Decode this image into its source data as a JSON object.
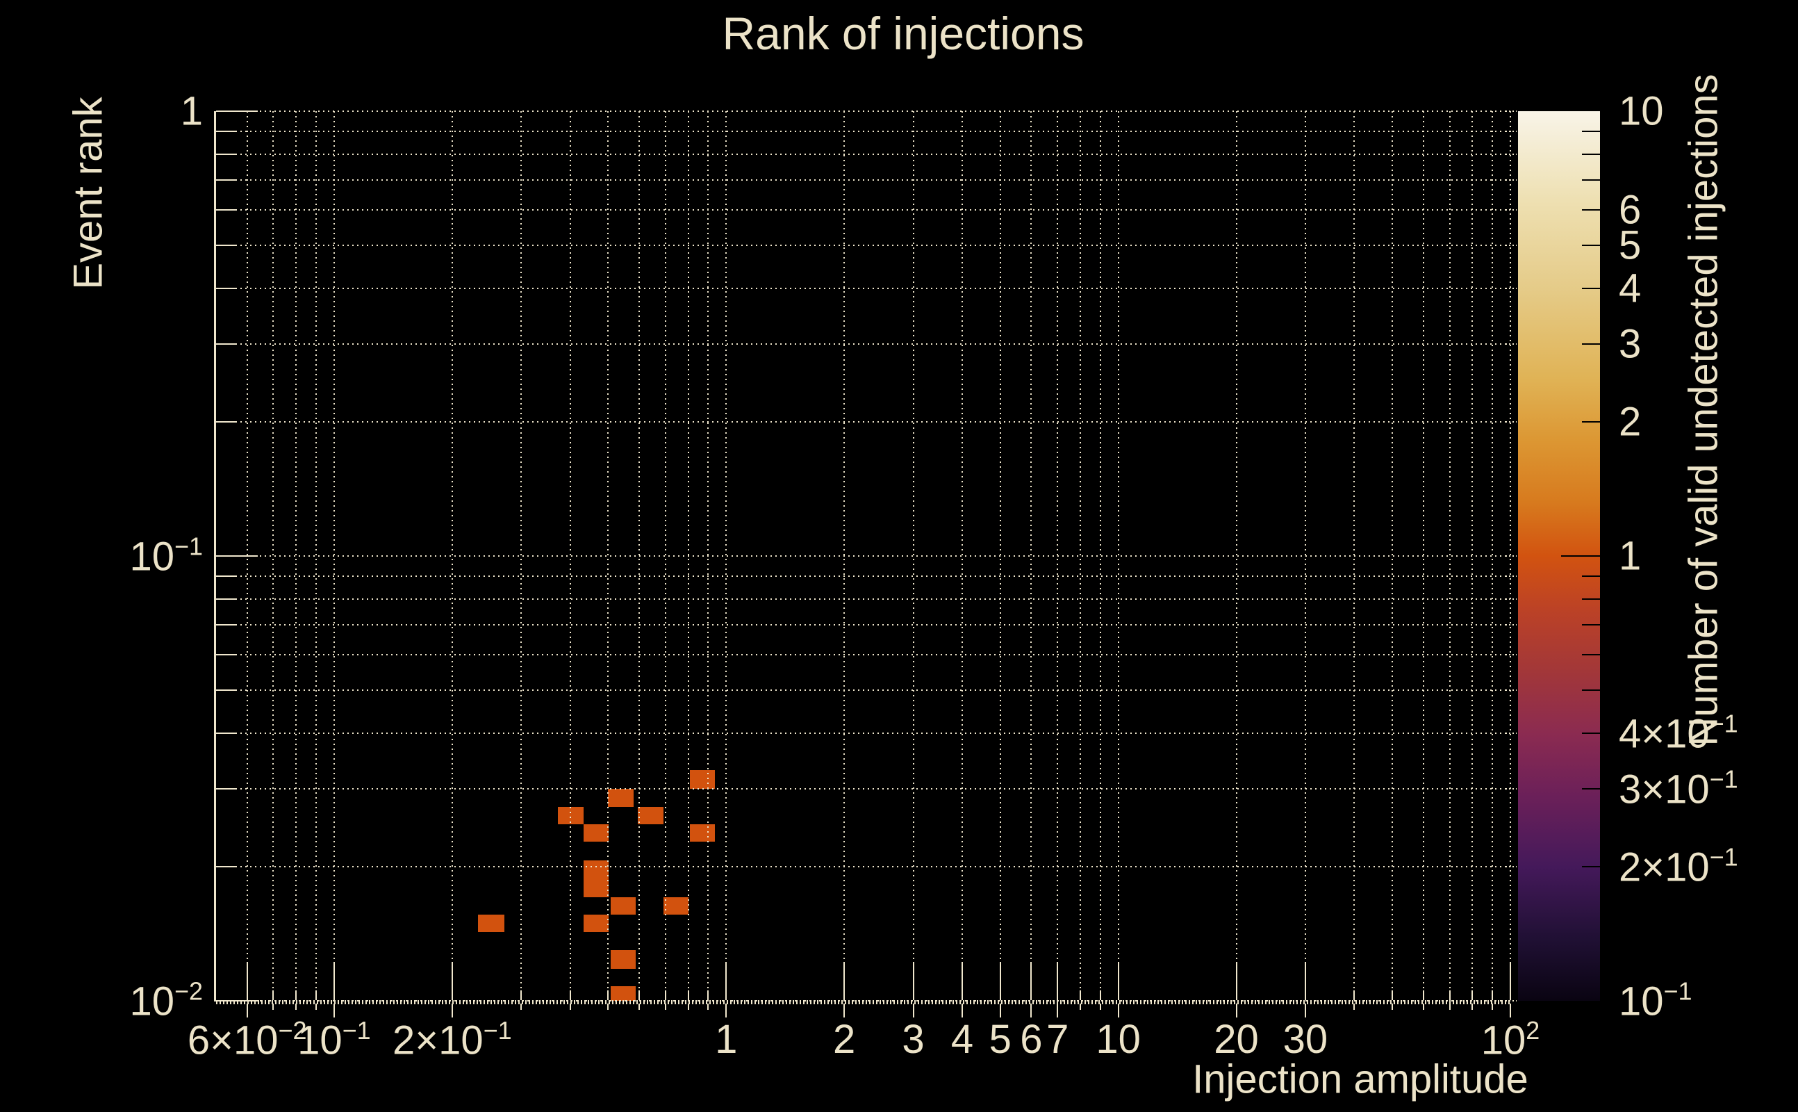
{
  "colors": {
    "background": "#000000",
    "text": "#ece3c8",
    "grid": "#f0e7cd",
    "cell": "#d2520e",
    "colorbar_tick": "#000000"
  },
  "chart_data": {
    "type": "heatmap",
    "title": "Rank of injections",
    "xlabel": "Injection amplitude",
    "ylabel": "Event rank",
    "colorbar_label": "Number of valid undetected injections",
    "x_scale": "log",
    "y_scale": "log",
    "color_scale": "log",
    "grid": true,
    "xlim": [
      0.05,
      100
    ],
    "ylim": [
      0.01,
      1
    ],
    "clim": [
      0.1,
      10
    ],
    "x_gridlines": [
      0.06,
      0.07,
      0.08,
      0.09,
      0.1,
      0.2,
      0.3,
      0.4,
      0.5,
      0.6,
      0.7,
      0.8,
      0.9,
      1,
      2,
      3,
      4,
      5,
      6,
      7,
      8,
      9,
      10,
      20,
      30,
      40,
      50,
      60,
      70,
      80,
      90,
      100
    ],
    "y_gridlines": [
      1,
      0.9,
      0.8,
      0.7,
      0.6,
      0.5,
      0.4,
      0.3,
      0.2,
      0.1,
      0.09,
      0.08,
      0.07,
      0.06,
      0.05,
      0.04,
      0.03,
      0.02,
      0.01
    ],
    "x_tick_labels": [
      {
        "v": 0.06,
        "t": "6×10",
        "e": "−2"
      },
      {
        "v": 0.1,
        "t": "10",
        "e": "−1"
      },
      {
        "v": 0.2,
        "t": "2×10",
        "e": "−1"
      },
      {
        "v": 1,
        "t": "1"
      },
      {
        "v": 2,
        "t": "2"
      },
      {
        "v": 3,
        "t": "3"
      },
      {
        "v": 4,
        "t": "4"
      },
      {
        "v": 5,
        "t": "5"
      },
      {
        "v": 6,
        "t": "6"
      },
      {
        "v": 7,
        "t": "7"
      },
      {
        "v": 10,
        "t": "10"
      },
      {
        "v": 20,
        "t": "20"
      },
      {
        "v": 30,
        "t": "30"
      },
      {
        "v": 100,
        "t": "10",
        "e": "2"
      }
    ],
    "y_tick_labels": [
      {
        "v": 1,
        "t": "1"
      },
      {
        "v": 0.1,
        "t": "10",
        "e": "−1"
      },
      {
        "v": 0.01,
        "t": "10",
        "e": "−2"
      }
    ],
    "colorbar_tick_labels": [
      {
        "v": 10,
        "t": "10"
      },
      {
        "v": 6,
        "t": "6"
      },
      {
        "v": 5,
        "t": "5"
      },
      {
        "v": 4,
        "t": "4"
      },
      {
        "v": 3,
        "t": "3"
      },
      {
        "v": 2,
        "t": "2"
      },
      {
        "v": 1,
        "t": "1"
      },
      {
        "v": 0.4,
        "t": "4×10",
        "e": "−1"
      },
      {
        "v": 0.3,
        "t": "3×10",
        "e": "−1"
      },
      {
        "v": 0.2,
        "t": "2×10",
        "e": "−1"
      },
      {
        "v": 0.1,
        "t": "10",
        "e": "−1"
      }
    ],
    "colorbar_minor_ticks": [
      9,
      8,
      7,
      0.9,
      0.8,
      0.7,
      0.6,
      0.5
    ],
    "colorbar_gradient": [
      [
        0,
        "#f8f4e8"
      ],
      [
        10,
        "#eee0b2"
      ],
      [
        20,
        "#e5cb88"
      ],
      [
        30,
        "#e0b356"
      ],
      [
        37,
        "#dc9733"
      ],
      [
        44,
        "#d77a1e"
      ],
      [
        50,
        "#d25310"
      ],
      [
        56,
        "#bc4226"
      ],
      [
        63,
        "#a23739"
      ],
      [
        70,
        "#8b2b51"
      ],
      [
        77,
        "#6b2059"
      ],
      [
        85,
        "#44195a"
      ],
      [
        93,
        "#201034"
      ],
      [
        100,
        "#0a0412"
      ]
    ],
    "cells": [
      {
        "amp_lo": 0.808,
        "amp_hi": 0.936,
        "rank_lo": 0.03,
        "rank_hi": 0.033,
        "value": 1
      },
      {
        "amp_lo": 0.499,
        "amp_hi": 0.581,
        "rank_lo": 0.0273,
        "rank_hi": 0.03,
        "value": 1
      },
      {
        "amp_lo": 0.372,
        "amp_hi": 0.433,
        "rank_lo": 0.0249,
        "rank_hi": 0.0273,
        "value": 1
      },
      {
        "amp_lo": 0.595,
        "amp_hi": 0.692,
        "rank_lo": 0.0249,
        "rank_hi": 0.0273,
        "value": 1
      },
      {
        "amp_lo": 0.433,
        "amp_hi": 0.501,
        "rank_lo": 0.0228,
        "rank_hi": 0.0249,
        "value": 1
      },
      {
        "amp_lo": 0.808,
        "amp_hi": 0.936,
        "rank_lo": 0.0228,
        "rank_hi": 0.0249,
        "value": 1
      },
      {
        "amp_lo": 0.433,
        "amp_hi": 0.501,
        "rank_lo": 0.0171,
        "rank_hi": 0.0207,
        "value": 1
      },
      {
        "amp_lo": 0.508,
        "amp_hi": 0.588,
        "rank_lo": 0.0156,
        "rank_hi": 0.0171,
        "value": 1
      },
      {
        "amp_lo": 0.692,
        "amp_hi": 0.802,
        "rank_lo": 0.0156,
        "rank_hi": 0.0171,
        "value": 1
      },
      {
        "amp_lo": 0.233,
        "amp_hi": 0.272,
        "rank_lo": 0.0143,
        "rank_hi": 0.0156,
        "value": 1
      },
      {
        "amp_lo": 0.433,
        "amp_hi": 0.501,
        "rank_lo": 0.0143,
        "rank_hi": 0.0156,
        "value": 1
      },
      {
        "amp_lo": 0.508,
        "amp_hi": 0.588,
        "rank_lo": 0.0118,
        "rank_hi": 0.013,
        "value": 1
      },
      {
        "amp_lo": 0.508,
        "amp_hi": 0.588,
        "rank_lo": 0.01,
        "rank_hi": 0.0108,
        "value": 1
      }
    ]
  }
}
